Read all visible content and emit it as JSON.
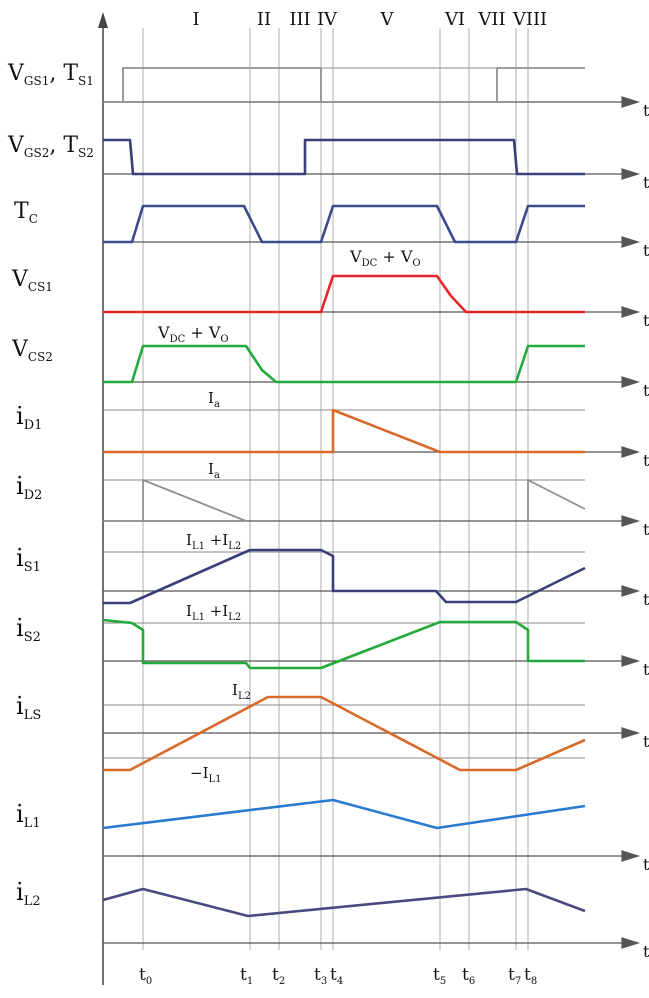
{
  "title": "",
  "intervals": [
    {
      "label": "I",
      "t0": "t0",
      "t1": "t1"
    },
    {
      "label": "II",
      "t0": "t1",
      "t1": "t2"
    },
    {
      "label": "III",
      "t0": "t2",
      "t1": "t3"
    },
    {
      "label": "IV",
      "t0": "t3",
      "t1": "t4"
    },
    {
      "label": "V",
      "t0": "t4",
      "t1": "t5"
    },
    {
      "label": "VI",
      "t0": "t5",
      "t1": "t6"
    },
    {
      "label": "VII",
      "t0": "t6",
      "t1": "t7"
    },
    {
      "label": "VIII",
      "t0": "t7",
      "t1": "t8"
    }
  ],
  "time_marks": [
    {
      "name": "t0",
      "main": "t",
      "sub": "0",
      "pos": 0.0
    },
    {
      "name": "t1",
      "main": "t",
      "sub": "1",
      "pos": 0.2
    },
    {
      "name": "t2",
      "main": "t",
      "sub": "2",
      "pos": 0.26
    },
    {
      "name": "t3",
      "main": "t",
      "sub": "3",
      "pos": 0.4
    },
    {
      "name": "t4",
      "main": "t",
      "sub": "4",
      "pos": 0.43
    },
    {
      "name": "t5",
      "main": "t",
      "sub": "5",
      "pos": 0.65
    },
    {
      "name": "t6",
      "main": "t",
      "sub": "6",
      "pos": 0.71
    },
    {
      "name": "t7",
      "main": "t",
      "sub": "7",
      "pos": 0.84
    },
    {
      "name": "t8",
      "main": "t",
      "sub": "8",
      "pos": 0.87
    }
  ],
  "axis_letter": "t",
  "traces": [
    {
      "id": "vgs1",
      "label_main": "V",
      "label_sub": "GS1",
      "label_rest": ", T",
      "label_sub2": "S1",
      "color": "#909090"
    },
    {
      "id": "vgs2",
      "label_main": "V",
      "label_sub": "GS2",
      "label_rest": ", T",
      "label_sub2": "S2",
      "color": "#3a3f7a"
    },
    {
      "id": "tc",
      "label_main": "T",
      "label_sub": "C",
      "label_rest": "",
      "label_sub2": "",
      "color": "#3a4a8c"
    },
    {
      "id": "vcs1",
      "label_main": "V",
      "label_sub": "CS1",
      "label_rest": "",
      "label_sub2": "",
      "color": "#e8262a"
    },
    {
      "id": "vcs2",
      "label_main": "V",
      "label_sub": "CS2",
      "label_rest": "",
      "label_sub2": "",
      "color": "#22aa3a"
    },
    {
      "id": "id1",
      "label_main": "i",
      "label_sub": "D1",
      "label_rest": "",
      "label_sub2": "",
      "color": "#d9692a"
    },
    {
      "id": "id2",
      "label_main": "i",
      "label_sub": "D2",
      "label_rest": "",
      "label_sub2": "",
      "color": "#909090"
    },
    {
      "id": "is1",
      "label_main": "i",
      "label_sub": "S1",
      "label_rest": "",
      "label_sub2": "",
      "color": "#3a3f7a"
    },
    {
      "id": "is2",
      "label_main": "i",
      "label_sub": "S2",
      "label_rest": "",
      "label_sub2": "",
      "color": "#22aa3a"
    },
    {
      "id": "ils",
      "label_main": "i",
      "label_sub": "LS",
      "label_rest": "",
      "label_sub2": "",
      "color": "#d9692a"
    },
    {
      "id": "il1",
      "label_main": "i",
      "label_sub": "L1",
      "label_rest": "",
      "label_sub2": "",
      "color": "#2a7ad0"
    },
    {
      "id": "il2",
      "label_main": "i",
      "label_sub": "L2",
      "label_rest": "",
      "label_sub2": "",
      "color": "#4a4a80"
    }
  ],
  "annotations": {
    "vcs1_level": {
      "a": "V",
      "a_sub": "DC",
      "mid": " + V",
      "b_sub": "O"
    },
    "vcs2_level": {
      "a": "V",
      "a_sub": "DC",
      "mid": " + V",
      "b_sub": "O"
    },
    "id1_level": {
      "a": "I",
      "a_sub": "a"
    },
    "id2_level": {
      "a": "I",
      "a_sub": "a"
    },
    "is1_level": {
      "a": "I",
      "a_sub": "L1",
      "mid": " +I",
      "b_sub": "L2"
    },
    "is2_level": {
      "a": "I",
      "a_sub": "L1",
      "mid": " +I",
      "b_sub": "L2"
    },
    "ils_high": {
      "a": "I",
      "a_sub": "L2"
    },
    "ils_low": {
      "a": "−I",
      "a_sub": "L1"
    }
  }
}
